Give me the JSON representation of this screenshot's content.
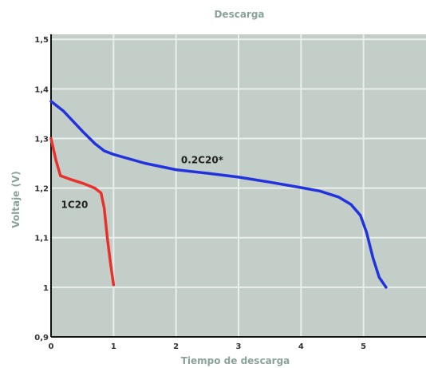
{
  "chart_data": {
    "type": "line",
    "title": "Descarga",
    "xlabel": "Tiempo de descarga",
    "ylabel": "Voltaje (V)",
    "xlim": [
      0,
      6
    ],
    "ylim": [
      0.9,
      1.51
    ],
    "x_ticks": [
      0,
      1,
      2,
      3,
      4,
      5
    ],
    "x_tick_labels": [
      "0",
      "1",
      "2",
      "3",
      "4",
      "5"
    ],
    "y_ticks": [
      0.9,
      1.0,
      1.1,
      1.2,
      1.3,
      1.4,
      1.5
    ],
    "y_tick_labels": [
      "0,9",
      "1",
      "1,1",
      "1,2",
      "1,3",
      "1,4",
      "1,5"
    ],
    "grid": true,
    "plot_background": "#c4cec8",
    "grid_color": "#e9efec",
    "series": [
      {
        "name": "1C20",
        "color": "#e8312a",
        "x": [
          0.0,
          0.08,
          0.15,
          0.3,
          0.5,
          0.7,
          0.8,
          0.85,
          0.9,
          0.95,
          1.0
        ],
        "y": [
          1.3,
          1.255,
          1.225,
          1.218,
          1.21,
          1.2,
          1.19,
          1.16,
          1.1,
          1.05,
          1.005
        ]
      },
      {
        "name": "0.2C20*",
        "color": "#2233dd",
        "x": [
          0.0,
          0.2,
          0.5,
          0.7,
          0.85,
          1.0,
          1.5,
          2.0,
          2.5,
          3.0,
          3.5,
          4.0,
          4.3,
          4.6,
          4.8,
          4.95,
          5.05,
          5.15,
          5.25,
          5.36
        ],
        "y": [
          1.375,
          1.355,
          1.315,
          1.29,
          1.275,
          1.268,
          1.25,
          1.237,
          1.23,
          1.222,
          1.212,
          1.201,
          1.194,
          1.182,
          1.167,
          1.145,
          1.11,
          1.06,
          1.02,
          1.0
        ]
      }
    ],
    "annotations": [
      {
        "text": "1C20",
        "x": 0.16,
        "y": 1.16
      },
      {
        "text": "0.2C20*",
        "x": 2.08,
        "y": 1.25
      }
    ]
  }
}
